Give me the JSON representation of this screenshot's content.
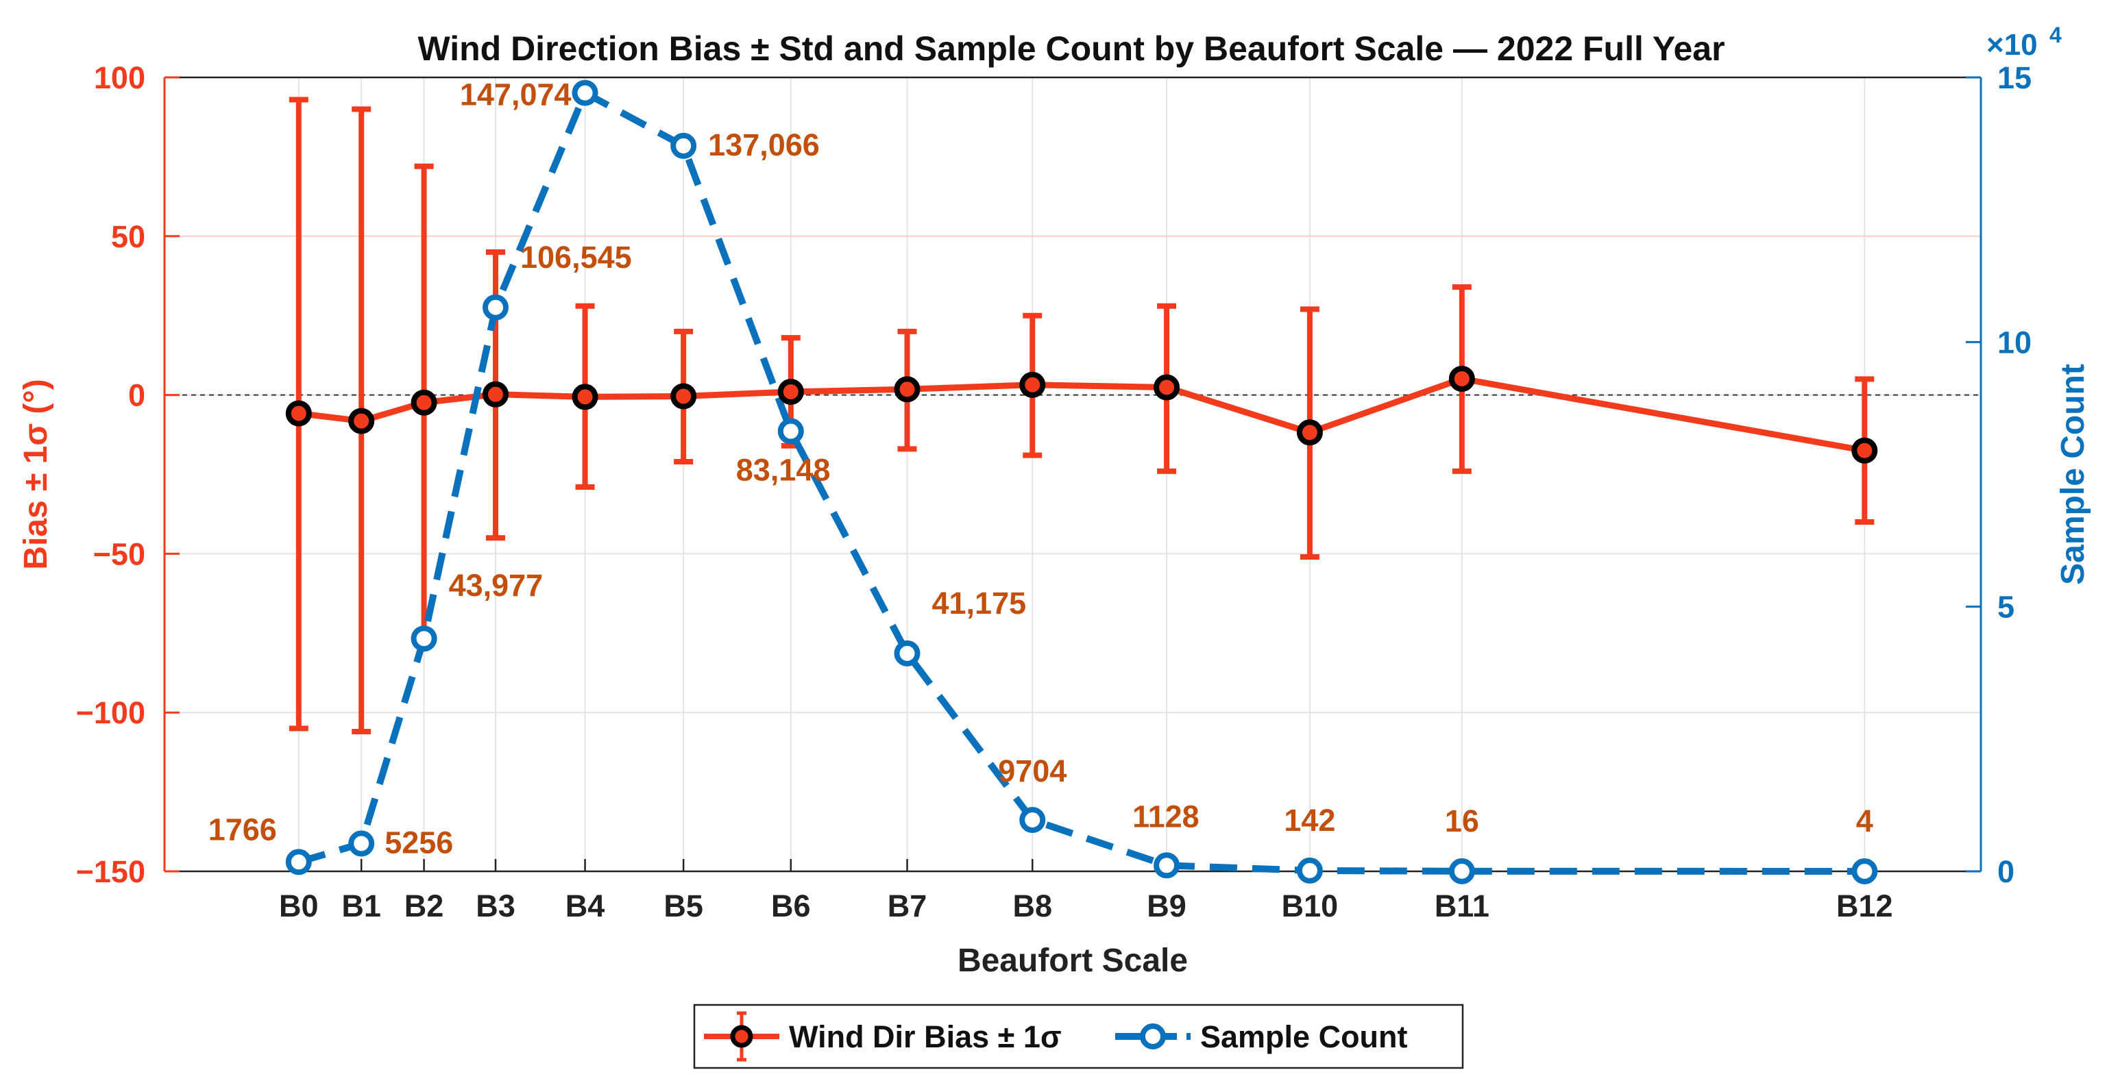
{
  "chart_data": {
    "type": "line",
    "title": "Wind Direction Bias ± Std and Sample Count by Beaufort Scale — 2022 Full Year",
    "xlabel": "Beaufort Scale",
    "ylabel_left": "Bias ± 1σ (°)",
    "ylabel_right": "Sample Count",
    "right_axis_multiplier": "×10",
    "right_axis_exponent": "4",
    "categories": [
      "B0",
      "B1",
      "B2",
      "B3",
      "B4",
      "B5",
      "B6",
      "B7",
      "B8",
      "B9",
      "B10",
      "B11",
      "B12"
    ],
    "x_positions": [
      0.3,
      1.0,
      1.7,
      2.5,
      3.5,
      4.6,
      5.8,
      7.1,
      8.5,
      10.0,
      11.6,
      13.3,
      17.8
    ],
    "xlim": [
      -1.2,
      19.1
    ],
    "ylim_left": [
      -150,
      100
    ],
    "left_ticks": [
      -150,
      -100,
      -50,
      0,
      50,
      100
    ],
    "left_tick_labels": [
      "−150",
      "−100",
      "−50",
      "0",
      "50",
      "100"
    ],
    "ylim_right": [
      0,
      150000
    ],
    "right_ticks": [
      0,
      50000,
      100000,
      150000
    ],
    "right_tick_labels": [
      "0",
      "5",
      "10",
      "15"
    ],
    "grid": true,
    "legend_position": "bottom-outside",
    "series": [
      {
        "name": "Wind Dir Bias ± 1σ",
        "axis": "left",
        "color": "#f23b1c",
        "style": "solid-errorbar",
        "values": [
          -5.8,
          -8.2,
          -2.4,
          0.2,
          -0.6,
          -0.4,
          1.0,
          1.8,
          3.2,
          2.4,
          -11.8,
          5.1,
          -17.5
        ],
        "error_high": [
          93,
          90,
          72,
          45,
          28,
          20,
          18,
          20,
          25,
          28,
          27,
          34,
          5
        ],
        "error_low": [
          -105,
          -106,
          -77,
          -45,
          -29,
          -21,
          -16,
          -17,
          -19,
          -24,
          -51,
          -24,
          -40
        ]
      },
      {
        "name": "Sample Count",
        "axis": "right",
        "color": "#0a72bd",
        "style": "dashed",
        "values": [
          1766,
          5256,
          43977,
          106545,
          147074,
          137066,
          83148,
          41175,
          9704,
          1128,
          142,
          16,
          4
        ],
        "labels": [
          "1766",
          "5256",
          "43,977",
          "106,545",
          "147,074",
          "137,066",
          "83,148",
          "41,175",
          "9704",
          "1128",
          "142",
          "16",
          "4"
        ],
        "label_color": "#c2500c"
      }
    ]
  }
}
